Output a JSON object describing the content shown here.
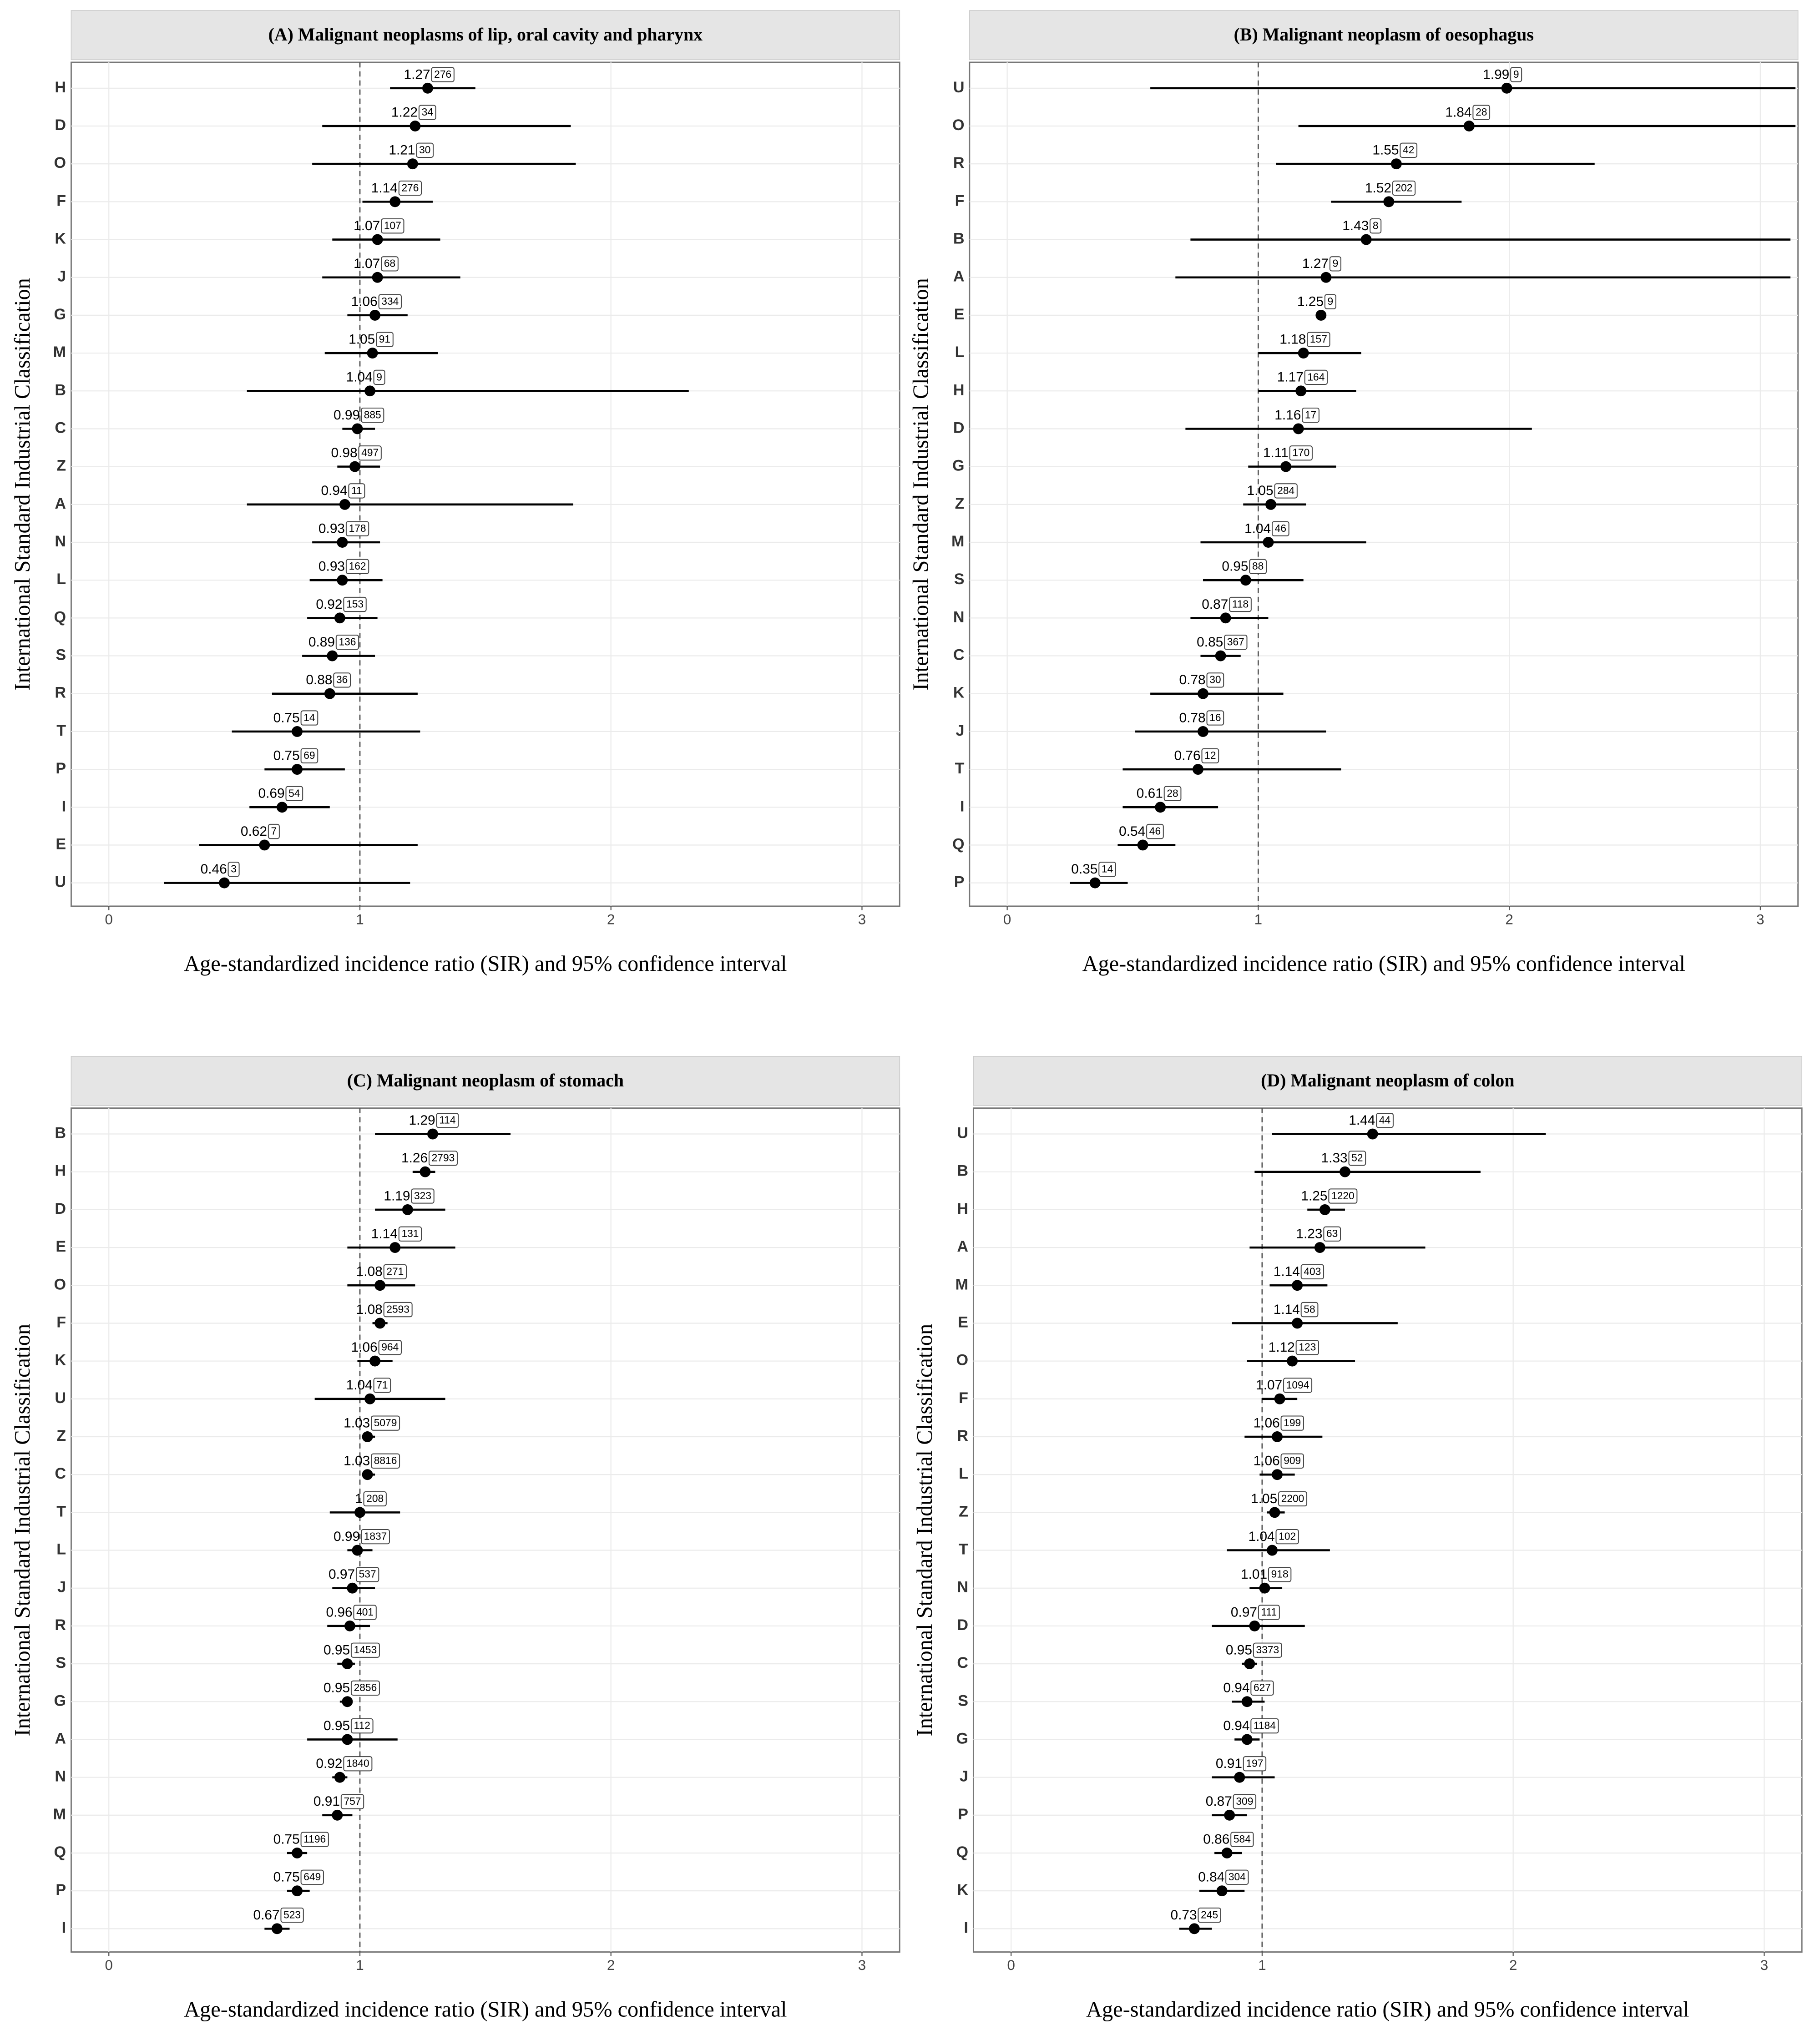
{
  "chart_data": [
    {
      "type": "forest",
      "title": "(A) Malignant neoplasms of lip, oral cavity and pharynx",
      "x_label": "Age-standardized incidence ratio (SIR) and 95% confidence interval",
      "y_label": "International Standard Industrial Classification",
      "categories": [
        "H",
        "D",
        "O",
        "F",
        "K",
        "J",
        "G",
        "M",
        "B",
        "C",
        "Z",
        "A",
        "N",
        "L",
        "Q",
        "S",
        "R",
        "T",
        "P",
        "I",
        "E",
        "U"
      ],
      "values": [
        1.27,
        1.22,
        1.21,
        1.14,
        1.07,
        1.07,
        1.06,
        1.05,
        1.04,
        0.99,
        0.98,
        0.94,
        0.93,
        0.93,
        0.92,
        0.89,
        0.88,
        0.75,
        0.75,
        0.69,
        0.62,
        0.46
      ],
      "counts": [
        276,
        34,
        30,
        276,
        107,
        68,
        334,
        91,
        9,
        885,
        497,
        11,
        178,
        162,
        153,
        136,
        36,
        14,
        69,
        54,
        7,
        3
      ],
      "lower": [
        1.12,
        0.85,
        0.81,
        1.01,
        0.89,
        0.85,
        0.95,
        0.86,
        0.55,
        0.93,
        0.91,
        0.55,
        0.81,
        0.8,
        0.79,
        0.77,
        0.65,
        0.49,
        0.62,
        0.56,
        0.36,
        0.22
      ],
      "upper": [
        1.46,
        1.84,
        1.86,
        1.29,
        1.32,
        1.4,
        1.19,
        1.31,
        2.31,
        1.06,
        1.08,
        1.85,
        1.08,
        1.09,
        1.07,
        1.06,
        1.23,
        1.24,
        0.94,
        0.88,
        1.23,
        1.2
      ],
      "xlim": [
        -0.15,
        3.15
      ],
      "xticks": [
        0,
        1,
        2,
        3
      ],
      "reference": 1,
      "grid": true
    },
    {
      "type": "forest",
      "title": "(B) Malignant neoplasm of oesophagus",
      "x_label": "Age-standardized incidence ratio (SIR) and 95% confidence interval",
      "y_label": "International Standard Industrial Classification",
      "categories": [
        "U",
        "O",
        "R",
        "F",
        "B",
        "A",
        "E",
        "L",
        "H",
        "D",
        "G",
        "Z",
        "M",
        "S",
        "N",
        "C",
        "K",
        "J",
        "T",
        "I",
        "Q",
        "P"
      ],
      "values": [
        1.99,
        1.84,
        1.55,
        1.52,
        1.43,
        1.27,
        1.25,
        1.18,
        1.17,
        1.16,
        1.11,
        1.05,
        1.04,
        0.95,
        0.87,
        0.85,
        0.78,
        0.78,
        0.76,
        0.61,
        0.54,
        0.35
      ],
      "counts": [
        9,
        28,
        42,
        202,
        8,
        9,
        9,
        157,
        164,
        17,
        170,
        284,
        46,
        88,
        118,
        367,
        30,
        16,
        12,
        28,
        46,
        14
      ],
      "lower": [
        0.57,
        1.16,
        1.07,
        1.29,
        0.73,
        0.67,
        null,
        1.0,
        1.0,
        0.71,
        0.96,
        0.94,
        0.77,
        0.78,
        0.73,
        0.77,
        0.57,
        0.51,
        0.46,
        0.46,
        0.44,
        0.25
      ],
      "upper": [
        3.14,
        3.14,
        2.34,
        1.81,
        3.12,
        3.12,
        null,
        1.41,
        1.39,
        2.09,
        1.31,
        1.19,
        1.43,
        1.18,
        1.04,
        0.93,
        1.1,
        1.27,
        1.33,
        0.84,
        0.67,
        0.48
      ],
      "xlim": [
        -0.15,
        3.15
      ],
      "xticks": [
        0,
        1,
        2,
        3
      ],
      "reference": 1,
      "grid": true
    },
    {
      "type": "forest",
      "title": "(C) Malignant neoplasm of stomach",
      "x_label": "Age-standardized incidence ratio (SIR) and 95% confidence interval",
      "y_label": "International Standard Industrial Classification",
      "categories": [
        "B",
        "H",
        "D",
        "E",
        "O",
        "F",
        "K",
        "U",
        "Z",
        "C",
        "T",
        "L",
        "J",
        "R",
        "S",
        "G",
        "A",
        "N",
        "M",
        "Q",
        "P",
        "I"
      ],
      "values": [
        1.29,
        1.26,
        1.19,
        1.14,
        1.08,
        1.08,
        1.06,
        1.04,
        1.03,
        1.03,
        1,
        0.99,
        0.97,
        0.96,
        0.95,
        0.95,
        0.95,
        0.92,
        0.91,
        0.75,
        0.75,
        0.67
      ],
      "counts": [
        114,
        2793,
        323,
        131,
        271,
        2593,
        964,
        71,
        5079,
        8816,
        208,
        1837,
        537,
        401,
        1453,
        2856,
        112,
        1840,
        757,
        1196,
        649,
        523
      ],
      "lower": [
        1.06,
        1.21,
        1.06,
        0.95,
        0.95,
        1.05,
        0.99,
        0.82,
        1.01,
        1.01,
        0.88,
        0.95,
        0.89,
        0.87,
        0.91,
        0.92,
        0.79,
        0.89,
        0.85,
        0.71,
        0.71,
        0.62
      ],
      "upper": [
        1.6,
        1.3,
        1.34,
        1.38,
        1.22,
        1.11,
        1.13,
        1.34,
        1.06,
        1.06,
        1.16,
        1.05,
        1.06,
        1.04,
        0.98,
        0.97,
        1.15,
        0.95,
        0.97,
        0.79,
        0.8,
        0.72
      ],
      "xlim": [
        -0.15,
        3.15
      ],
      "xticks": [
        0,
        1,
        2,
        3
      ],
      "reference": 1,
      "grid": true
    },
    {
      "type": "forest",
      "title": "(D) Malignant neoplasm of colon",
      "x_label": "Age-standardized incidence ratio (SIR) and 95% confidence interval",
      "y_label": "International Standard Industrial Classification",
      "categories": [
        "U",
        "B",
        "H",
        "A",
        "M",
        "E",
        "O",
        "F",
        "R",
        "L",
        "Z",
        "T",
        "N",
        "D",
        "C",
        "S",
        "G",
        "J",
        "P",
        "Q",
        "K",
        "I"
      ],
      "values": [
        1.44,
        1.33,
        1.25,
        1.23,
        1.14,
        1.14,
        1.12,
        1.07,
        1.06,
        1.06,
        1.05,
        1.04,
        1.01,
        0.97,
        0.95,
        0.94,
        0.94,
        0.91,
        0.87,
        0.86,
        0.84,
        0.73
      ],
      "counts": [
        44,
        52,
        1220,
        63,
        403,
        58,
        123,
        1094,
        199,
        909,
        2200,
        102,
        918,
        111,
        3373,
        627,
        1184,
        197,
        309,
        584,
        304,
        245
      ],
      "lower": [
        1.04,
        0.97,
        1.18,
        0.95,
        1.03,
        0.88,
        0.94,
        1.0,
        0.93,
        0.99,
        1.02,
        0.86,
        0.95,
        0.8,
        0.92,
        0.88,
        0.89,
        0.8,
        0.8,
        0.81,
        0.75,
        0.67
      ],
      "upper": [
        2.13,
        1.87,
        1.33,
        1.65,
        1.26,
        1.54,
        1.37,
        1.14,
        1.24,
        1.13,
        1.09,
        1.27,
        1.08,
        1.17,
        0.98,
        1.01,
        0.99,
        1.05,
        0.94,
        0.92,
        0.93,
        0.8
      ],
      "xlim": [
        -0.15,
        3.15
      ],
      "xticks": [
        0,
        1,
        2,
        3
      ],
      "reference": 1,
      "grid": true
    }
  ]
}
